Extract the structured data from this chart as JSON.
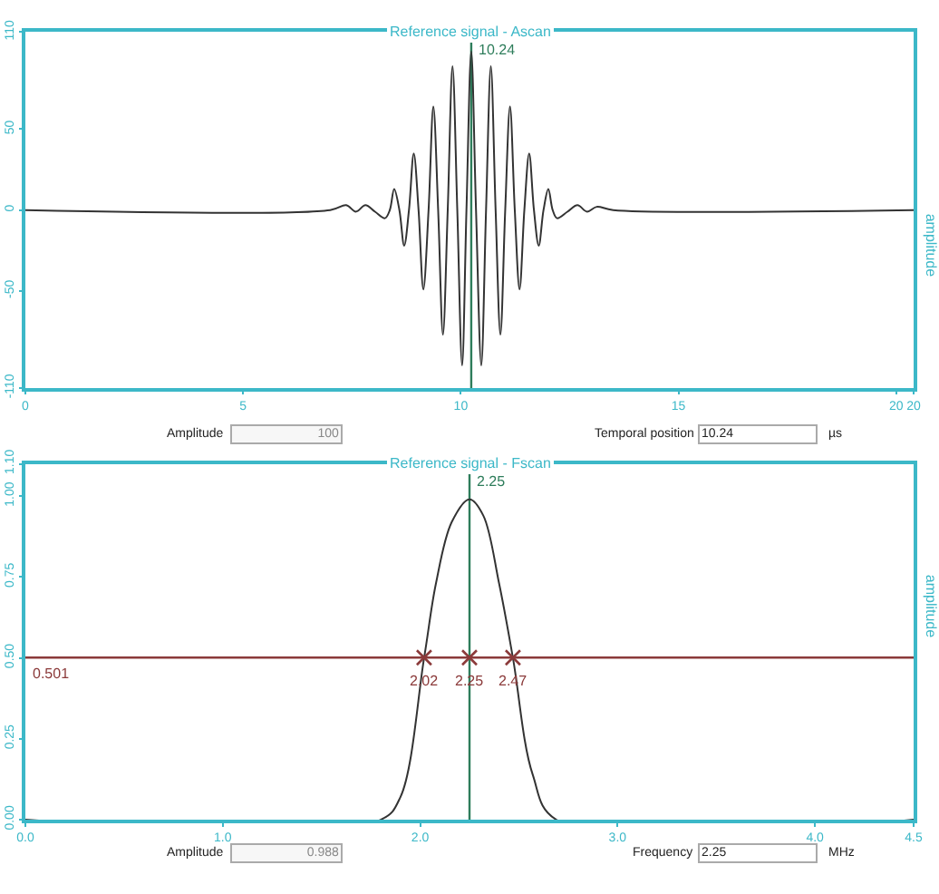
{
  "chart_data": [
    {
      "type": "line",
      "title": "Reference signal - Ascan",
      "ylabel": "amplitude",
      "series": [
        {
          "color": "#333333",
          "x": [
            0,
            7.0,
            7.37,
            7.59,
            7.81,
            8.03,
            8.26,
            8.37,
            8.47,
            8.59,
            8.7,
            8.81,
            8.92,
            9.03,
            9.14,
            9.26,
            9.37,
            9.48,
            9.59,
            9.7,
            9.81,
            9.92,
            10.03,
            10.13,
            10.24,
            10.35,
            10.47,
            10.58,
            10.69,
            10.8,
            10.91,
            11.02,
            11.13,
            11.24,
            11.35,
            11.46,
            11.57,
            11.68,
            11.79,
            11.9,
            12.01,
            12.11,
            12.21,
            12.45,
            12.68,
            12.9,
            13.12,
            13.5,
            20.4
          ],
          "values": [
            0,
            0,
            3,
            -1,
            3,
            -1,
            -5,
            0,
            13,
            0,
            -22,
            0,
            35,
            0,
            -49,
            0,
            64,
            0,
            -77,
            0,
            89,
            0,
            -96,
            0,
            98,
            0,
            -96,
            0,
            89,
            0,
            -77,
            0,
            64,
            0,
            -49,
            0,
            35,
            0,
            -22,
            0,
            13,
            0,
            -5,
            -1,
            3,
            -1,
            2,
            0,
            0
          ]
        }
      ],
      "xlim": [
        0,
        20.4
      ],
      "xticks": [
        0,
        5,
        10,
        15,
        20,
        {
          "value": 20.4,
          "label": "20"
        }
      ],
      "ylim": [
        -110,
        110
      ],
      "yticks": [
        -110,
        -50,
        0,
        50,
        110
      ],
      "ref_lines": [
        {
          "axis": "x",
          "value": 10.24,
          "label": "10.24",
          "color": "#2e7d5b"
        }
      ],
      "grid": false,
      "annotations": [
        "Amplitude",
        "100",
        "Temporal position",
        "10.24",
        "µs"
      ]
    },
    {
      "type": "line",
      "title": "Reference signal - Fscan",
      "ylabel": "amplitude",
      "series": [
        {
          "color": "#333333",
          "x": [
            0,
            1.8,
            1.9,
            2.02,
            2.08,
            2.16,
            2.25,
            2.32,
            2.4,
            2.47,
            2.57,
            2.69,
            4.5
          ],
          "values": [
            0,
            0,
            0.07,
            0.5,
            0.73,
            0.92,
            0.99,
            0.94,
            0.73,
            0.5,
            0.14,
            0,
            0
          ]
        },
        {
          "type": "scatter",
          "color": "#8b3a3a",
          "marker": "cross",
          "x": [
            2.02,
            2.25,
            2.47
          ],
          "values": [
            0.501,
            0.501,
            0.501
          ]
        }
      ],
      "xlim": [
        0,
        4.5
      ],
      "xticks": [
        {
          "value": 0,
          "label": "0.0"
        },
        {
          "value": 1,
          "label": "1.0"
        },
        {
          "value": 2,
          "label": "2.0"
        },
        {
          "value": 3,
          "label": "3.0"
        },
        {
          "value": 4,
          "label": "4.0"
        },
        4.5
      ],
      "ylim": [
        0,
        1.1
      ],
      "yticks": [
        {
          "value": 0,
          "label": "0.00"
        },
        0.25,
        {
          "value": 0.5,
          "label": "0.50"
        },
        0.75,
        {
          "value": 1,
          "label": "1.00"
        },
        {
          "value": 1.1,
          "label": "1.10"
        }
      ],
      "ref_lines": [
        {
          "axis": "x",
          "value": 2.25,
          "label": "2.25",
          "color": "#2e7d5b"
        },
        {
          "axis": "y",
          "value": 0.501,
          "label": "0.501",
          "color": "#8b3a3a"
        }
      ],
      "grid": false,
      "annotations": [
        {
          "text": "2.02",
          "x": 2.02,
          "y": 0.501
        },
        {
          "text": "2.25",
          "x": 2.25,
          "y": 0.501
        },
        {
          "text": "2.47",
          "x": 2.47,
          "y": 0.501
        },
        "Amplitude",
        "0.988",
        "Frequency",
        "2.25",
        "MHz"
      ]
    }
  ]
}
